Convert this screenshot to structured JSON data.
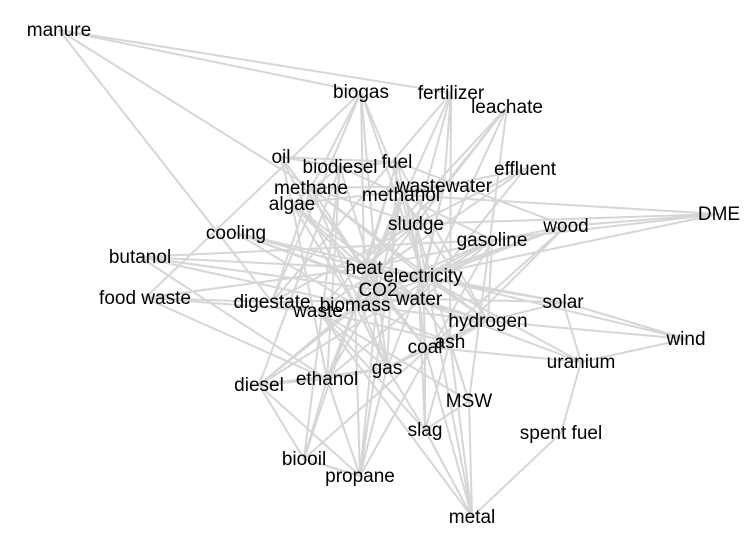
{
  "diagram": {
    "type": "network-graph",
    "edge_color": "#d6d6d6",
    "label_color": "#000000",
    "nodes": [
      {
        "id": "manure",
        "label": "manure"
      },
      {
        "id": "biogas",
        "label": "biogas"
      },
      {
        "id": "fertilizer",
        "label": "fertilizer"
      },
      {
        "id": "leachate",
        "label": "leachate"
      },
      {
        "id": "oil",
        "label": "oil"
      },
      {
        "id": "fuel",
        "label": "fuel"
      },
      {
        "id": "biodiesel",
        "label": "biodiesel"
      },
      {
        "id": "effluent",
        "label": "effluent"
      },
      {
        "id": "methane",
        "label": "methane"
      },
      {
        "id": "wastewater",
        "label": "wastewater"
      },
      {
        "id": "methanol",
        "label": "methanol"
      },
      {
        "id": "algae",
        "label": "algae"
      },
      {
        "id": "DME",
        "label": "DME"
      },
      {
        "id": "sludge",
        "label": "sludge"
      },
      {
        "id": "wood",
        "label": "wood"
      },
      {
        "id": "cooling",
        "label": "cooling"
      },
      {
        "id": "gasoline",
        "label": "gasoline"
      },
      {
        "id": "butanol",
        "label": "butanol"
      },
      {
        "id": "heat",
        "label": "heat"
      },
      {
        "id": "electricity",
        "label": "electricity"
      },
      {
        "id": "CO2",
        "label": "CO2"
      },
      {
        "id": "food waste",
        "label": "food waste"
      },
      {
        "id": "digestate",
        "label": "digestate"
      },
      {
        "id": "water",
        "label": "water"
      },
      {
        "id": "biomass",
        "label": "biomass"
      },
      {
        "id": "solar",
        "label": "solar"
      },
      {
        "id": "waste",
        "label": "waste"
      },
      {
        "id": "hydrogen",
        "label": "hydrogen"
      },
      {
        "id": "wind",
        "label": "wind"
      },
      {
        "id": "ash",
        "label": "ash"
      },
      {
        "id": "coal",
        "label": "coal"
      },
      {
        "id": "uranium",
        "label": "uranium"
      },
      {
        "id": "gas",
        "label": "gas"
      },
      {
        "id": "ethanol",
        "label": "ethanol"
      },
      {
        "id": "diesel",
        "label": "diesel"
      },
      {
        "id": "MSW",
        "label": "MSW"
      },
      {
        "id": "slag",
        "label": "slag"
      },
      {
        "id": "spent fuel",
        "label": "spent fuel"
      },
      {
        "id": "biooil",
        "label": "biooil"
      },
      {
        "id": "propane",
        "label": "propane"
      },
      {
        "id": "metal",
        "label": "metal"
      }
    ],
    "edges": [
      [
        "manure",
        "biogas"
      ],
      [
        "manure",
        "methane"
      ],
      [
        "manure",
        "digestate"
      ],
      [
        "manure",
        "fertilizer"
      ],
      [
        "biogas",
        "methane"
      ],
      [
        "biogas",
        "electricity"
      ],
      [
        "biogas",
        "heat"
      ],
      [
        "biogas",
        "digestate"
      ],
      [
        "biogas",
        "CO2"
      ],
      [
        "biogas",
        "sludge"
      ],
      [
        "fertilizer",
        "digestate"
      ],
      [
        "fertilizer",
        "sludge"
      ],
      [
        "fertilizer",
        "ash"
      ],
      [
        "fertilizer",
        "biomass"
      ],
      [
        "fertilizer",
        "wastewater"
      ],
      [
        "leachate",
        "wastewater"
      ],
      [
        "leachate",
        "MSW"
      ],
      [
        "leachate",
        "sludge"
      ],
      [
        "leachate",
        "waste"
      ],
      [
        "leachate",
        "water"
      ],
      [
        "oil",
        "biodiesel"
      ],
      [
        "oil",
        "fuel"
      ],
      [
        "oil",
        "algae"
      ],
      [
        "oil",
        "gas"
      ],
      [
        "oil",
        "coal"
      ],
      [
        "oil",
        "heat"
      ],
      [
        "biodiesel",
        "methanol"
      ],
      [
        "biodiesel",
        "algae"
      ],
      [
        "biodiesel",
        "ethanol"
      ],
      [
        "biodiesel",
        "diesel"
      ],
      [
        "biodiesel",
        "fuel"
      ],
      [
        "biodiesel",
        "CO2"
      ],
      [
        "fuel",
        "electricity"
      ],
      [
        "fuel",
        "heat"
      ],
      [
        "fuel",
        "gas"
      ],
      [
        "fuel",
        "hydrogen"
      ],
      [
        "fuel",
        "wood"
      ],
      [
        "fuel",
        "biomass"
      ],
      [
        "effluent",
        "wastewater"
      ],
      [
        "effluent",
        "sludge"
      ],
      [
        "effluent",
        "water"
      ],
      [
        "effluent",
        "waste"
      ],
      [
        "methane",
        "CO2"
      ],
      [
        "methane",
        "electricity"
      ],
      [
        "methane",
        "hydrogen"
      ],
      [
        "methane",
        "heat"
      ],
      [
        "methane",
        "wastewater"
      ],
      [
        "methane",
        "gas"
      ],
      [
        "methane",
        "sludge"
      ],
      [
        "wastewater",
        "sludge"
      ],
      [
        "wastewater",
        "water"
      ],
      [
        "wastewater",
        "algae"
      ],
      [
        "wastewater",
        "electricity"
      ],
      [
        "wastewater",
        "heat"
      ],
      [
        "methanol",
        "DME"
      ],
      [
        "methanol",
        "hydrogen"
      ],
      [
        "methanol",
        "CO2"
      ],
      [
        "methanol",
        "gasoline"
      ],
      [
        "methanol",
        "ethanol"
      ],
      [
        "methanol",
        "electricity"
      ],
      [
        "methanol",
        "biomass"
      ],
      [
        "algae",
        "CO2"
      ],
      [
        "algae",
        "biomass"
      ],
      [
        "algae",
        "water"
      ],
      [
        "algae",
        "ethanol"
      ],
      [
        "algae",
        "heat"
      ],
      [
        "DME",
        "gasoline"
      ],
      [
        "DME",
        "wood"
      ],
      [
        "DME",
        "sludge"
      ],
      [
        "DME",
        "electricity"
      ],
      [
        "sludge",
        "water"
      ],
      [
        "sludge",
        "digestate"
      ],
      [
        "sludge",
        "ash"
      ],
      [
        "sludge",
        "biomass"
      ],
      [
        "sludge",
        "heat"
      ],
      [
        "sludge",
        "metal"
      ],
      [
        "sludge",
        "slag"
      ],
      [
        "wood",
        "biomass"
      ],
      [
        "wood",
        "electricity"
      ],
      [
        "wood",
        "heat"
      ],
      [
        "wood",
        "ash"
      ],
      [
        "wood",
        "biooil"
      ],
      [
        "wood",
        "CO2"
      ],
      [
        "cooling",
        "water"
      ],
      [
        "cooling",
        "electricity"
      ],
      [
        "cooling",
        "heat"
      ],
      [
        "cooling",
        "uranium"
      ],
      [
        "cooling",
        "biomass"
      ],
      [
        "gasoline",
        "ethanol"
      ],
      [
        "gasoline",
        "diesel"
      ],
      [
        "gasoline",
        "propane"
      ],
      [
        "gasoline",
        "hydrogen"
      ],
      [
        "gasoline",
        "electricity"
      ],
      [
        "gasoline",
        "CO2"
      ],
      [
        "butanol",
        "ethanol"
      ],
      [
        "butanol",
        "biomass"
      ],
      [
        "butanol",
        "heat"
      ],
      [
        "butanol",
        "gasoline"
      ],
      [
        "butanol",
        "CO2"
      ],
      [
        "heat",
        "electricity"
      ],
      [
        "heat",
        "CO2"
      ],
      [
        "heat",
        "water"
      ],
      [
        "heat",
        "solar"
      ],
      [
        "heat",
        "coal"
      ],
      [
        "heat",
        "gas"
      ],
      [
        "heat",
        "biomass"
      ],
      [
        "electricity",
        "CO2"
      ],
      [
        "electricity",
        "solar"
      ],
      [
        "electricity",
        "wind"
      ],
      [
        "electricity",
        "hydrogen"
      ],
      [
        "electricity",
        "coal"
      ],
      [
        "electricity",
        "gas"
      ],
      [
        "electricity",
        "uranium"
      ],
      [
        "electricity",
        "water"
      ],
      [
        "CO2",
        "coal"
      ],
      [
        "CO2",
        "gas"
      ],
      [
        "CO2",
        "water"
      ],
      [
        "CO2",
        "ethanol"
      ],
      [
        "CO2",
        "diesel"
      ],
      [
        "CO2",
        "biomass"
      ],
      [
        "CO2",
        "hydrogen"
      ],
      [
        "CO2",
        "propane"
      ],
      [
        "food waste",
        "digestate"
      ],
      [
        "food waste",
        "biogas"
      ],
      [
        "food waste",
        "waste"
      ],
      [
        "food waste",
        "ethanol"
      ],
      [
        "food waste",
        "heat"
      ],
      [
        "digestate",
        "water"
      ],
      [
        "digestate",
        "methane"
      ],
      [
        "digestate",
        "waste"
      ],
      [
        "water",
        "hydrogen"
      ],
      [
        "water",
        "biomass"
      ],
      [
        "water",
        "solar"
      ],
      [
        "water",
        "ash"
      ],
      [
        "water",
        "coal"
      ],
      [
        "biomass",
        "ethanol"
      ],
      [
        "biomass",
        "biooil"
      ],
      [
        "biomass",
        "gas"
      ],
      [
        "biomass",
        "ash"
      ],
      [
        "biomass",
        "hydrogen"
      ],
      [
        "biomass",
        "diesel"
      ],
      [
        "biomass",
        "propane"
      ],
      [
        "solar",
        "hydrogen"
      ],
      [
        "solar",
        "wind"
      ],
      [
        "solar",
        "uranium"
      ],
      [
        "waste",
        "MSW"
      ],
      [
        "waste",
        "slag"
      ],
      [
        "waste",
        "metal"
      ],
      [
        "waste",
        "ash"
      ],
      [
        "waste",
        "gas"
      ],
      [
        "hydrogen",
        "coal"
      ],
      [
        "hydrogen",
        "gas"
      ],
      [
        "hydrogen",
        "wind"
      ],
      [
        "hydrogen",
        "ash"
      ],
      [
        "ash",
        "coal"
      ],
      [
        "ash",
        "slag"
      ],
      [
        "ash",
        "metal"
      ],
      [
        "ash",
        "MSW"
      ],
      [
        "coal",
        "gas"
      ],
      [
        "coal",
        "slag"
      ],
      [
        "coal",
        "uranium"
      ],
      [
        "uranium",
        "spent fuel"
      ],
      [
        "uranium",
        "wind"
      ],
      [
        "gas",
        "propane"
      ],
      [
        "gas",
        "diesel"
      ],
      [
        "gas",
        "ethanol"
      ],
      [
        "gas",
        "slag"
      ],
      [
        "ethanol",
        "diesel"
      ],
      [
        "ethanol",
        "biooil"
      ],
      [
        "ethanol",
        "propane"
      ],
      [
        "diesel",
        "biooil"
      ],
      [
        "diesel",
        "propane"
      ],
      [
        "MSW",
        "slag"
      ],
      [
        "MSW",
        "metal"
      ],
      [
        "MSW",
        "ash"
      ],
      [
        "slag",
        "metal"
      ],
      [
        "spent fuel",
        "metal"
      ],
      [
        "biooil",
        "propane"
      ],
      [
        "biooil",
        "biodiesel"
      ],
      [
        "propane",
        "methanol"
      ],
      [
        "metal",
        "coal"
      ]
    ]
  }
}
